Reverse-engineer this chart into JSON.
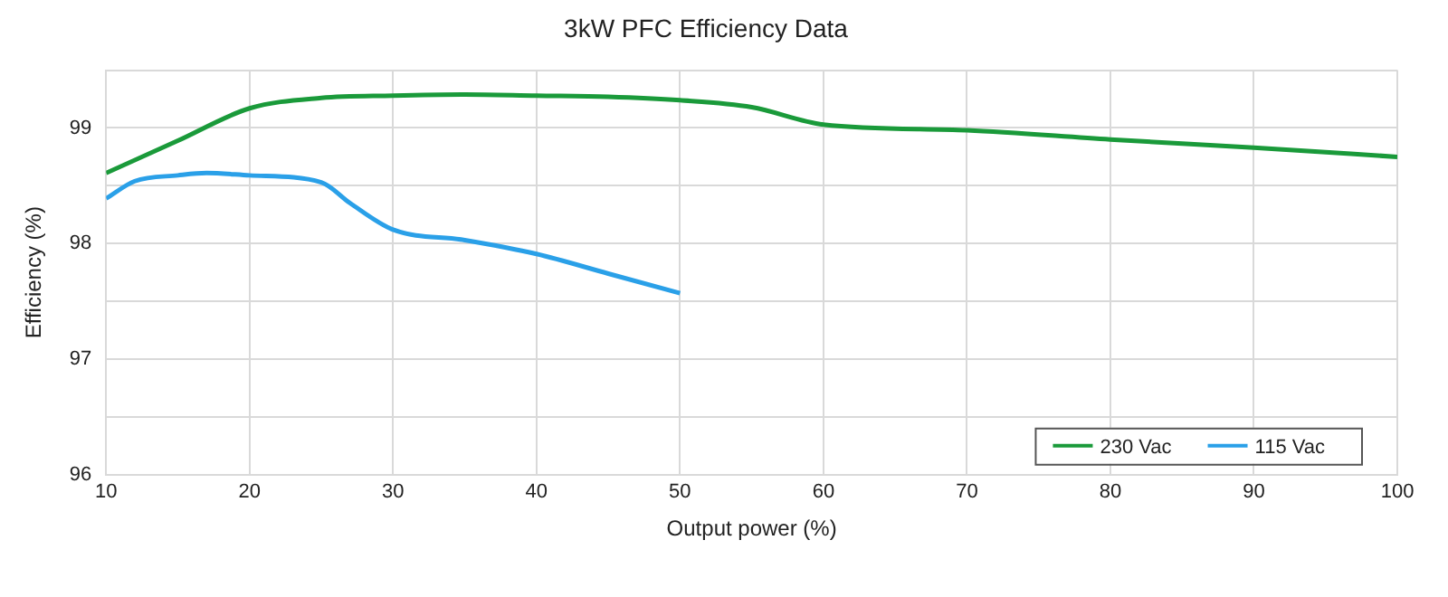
{
  "chart_data": {
    "type": "line",
    "title": "3kW PFC Efficiency Data",
    "xlabel": "Output power (%)",
    "ylabel": "Efficiency (%)",
    "xlim": [
      10,
      100
    ],
    "xticks": [
      10,
      20,
      30,
      40,
      50,
      60,
      70,
      80,
      90,
      100
    ],
    "ylim": [
      96,
      99.5
    ],
    "yticks": [
      96,
      {
        "value": 96.5,
        "label": null
      },
      97,
      {
        "value": 97.5,
        "label": null
      },
      98,
      {
        "value": 98.5,
        "label": null
      },
      99,
      {
        "value": 99.5,
        "label": null
      }
    ],
    "grid": true,
    "legend": "bottom right",
    "marker": "none",
    "line_style": "solid",
    "series": [
      {
        "name": "230 Vac",
        "color": "#1a9a3a",
        "x": [
          10,
          15,
          20,
          25,
          30,
          35,
          40,
          45,
          50,
          55,
          60,
          70,
          80,
          90,
          100
        ],
        "values": [
          98.61,
          98.89,
          99.17,
          99.26,
          99.28,
          99.29,
          99.28,
          99.27,
          99.24,
          99.18,
          99.03,
          98.98,
          98.9,
          98.83,
          98.75
        ]
      },
      {
        "name": "115 Vac",
        "color": "#2aa0e8",
        "x": [
          10,
          12,
          15,
          17,
          20,
          25,
          27,
          30,
          35,
          40,
          45,
          50
        ],
        "values": [
          98.39,
          98.54,
          98.59,
          98.61,
          98.59,
          98.53,
          98.35,
          98.12,
          98.03,
          97.91,
          97.74,
          97.57
        ]
      }
    ]
  }
}
